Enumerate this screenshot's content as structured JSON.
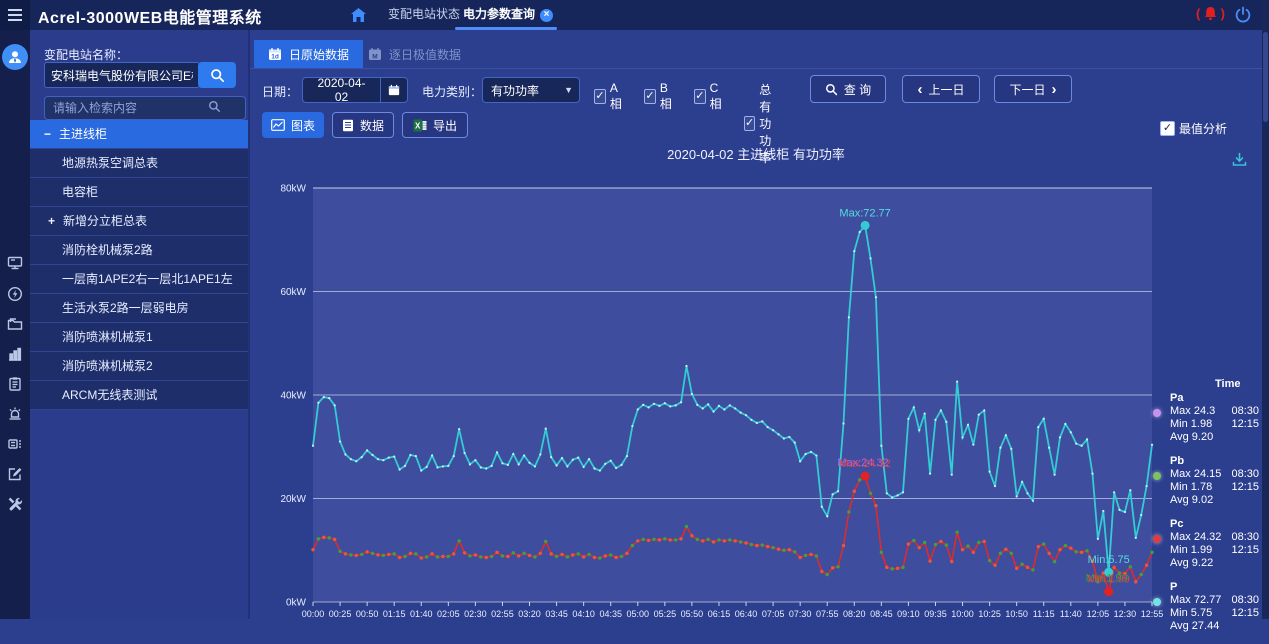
{
  "app": {
    "title": "Acrel-3000WEB电能管理系统"
  },
  "topbar": {
    "tabs": [
      {
        "label": "变配电站状态",
        "active": false
      },
      {
        "label": "电力参数查询",
        "active": true,
        "close": "×"
      }
    ]
  },
  "sidebar": {
    "station_label": "变配电站名称：",
    "station_value": "安科瑞电气股份有限公司E楼",
    "search_placeholder": "请输入检索内容",
    "tree": [
      {
        "label": "主进线柜",
        "expander": "−",
        "selected": true
      },
      {
        "label": "地源热泵空调总表"
      },
      {
        "label": "电容柜"
      },
      {
        "label": "新增分立柜总表",
        "expander": "+"
      },
      {
        "label": "消防栓机械泵2路"
      },
      {
        "label": "一层南1APE2右一层北1APE1左"
      },
      {
        "label": "生活水泵2路一层弱电房"
      },
      {
        "label": "消防喷淋机械泵1"
      },
      {
        "label": "消防喷淋机械泵2"
      },
      {
        "label": "ARCM无线表测试"
      }
    ]
  },
  "main": {
    "tabs": [
      {
        "label": "日原始数据",
        "active": true
      },
      {
        "label": "逐日极值数据",
        "active": false
      }
    ],
    "filters": {
      "date_label": "日期：",
      "date_value": "2020-04-02",
      "category_label": "电力类别：",
      "category_value": "有功功率",
      "checkboxes": [
        {
          "label": "A相",
          "checked": true
        },
        {
          "label": "B相",
          "checked": true
        },
        {
          "label": "C相",
          "checked": true
        },
        {
          "label": "总有功功率",
          "checked": true
        }
      ],
      "query_label": "查 询",
      "prev_label": "上一日",
      "next_label": "下一日"
    },
    "view_buttons": {
      "chart_label": "图表",
      "data_label": "数据",
      "export_label": "导出"
    },
    "extreme_checkbox": {
      "label": "最值分析",
      "checked": true
    }
  },
  "chart_data": {
    "type": "line",
    "title": "2020-04-02  主进线柜  有功功率",
    "ylim": [
      0,
      80
    ],
    "ytick_labels": [
      "0kW",
      "20kW",
      "40kW",
      "60kW",
      "80kW"
    ],
    "x_start": "00:00",
    "x_interval_minutes": 5,
    "x_tick_labels": [
      "00:00",
      "00:25",
      "00:50",
      "01:15",
      "01:40",
      "02:05",
      "02:30",
      "02:55",
      "03:20",
      "03:45",
      "04:10",
      "04:35",
      "05:00",
      "05:25",
      "05:50",
      "06:15",
      "06:40",
      "07:05",
      "07:30",
      "07:55",
      "08:20",
      "08:45",
      "09:10",
      "09:35",
      "10:00",
      "10:25",
      "10:50",
      "11:15",
      "11:40",
      "12:05",
      "12:30",
      "12:55"
    ],
    "series": [
      {
        "name": "Pa",
        "color": "#c98ff2",
        "values_ref": "phase"
      },
      {
        "name": "Pb",
        "color": "#7cc35a",
        "values_ref": "phase"
      },
      {
        "name": "Pc",
        "color": "#e23b3b",
        "values_ref": "phase"
      },
      {
        "name": "P",
        "color": "#33ccd4",
        "values_ref": "p"
      }
    ],
    "values": {
      "phase": [
        10.1,
        12.2,
        12.5,
        12.4,
        12.1,
        9.8,
        9.3,
        9.1,
        9.0,
        9.2,
        9.7,
        9.4,
        9.1,
        9.0,
        9.2,
        9.3,
        8.6,
        8.8,
        9.4,
        9.3,
        8.5,
        8.7,
        9.3,
        8.7,
        8.8,
        8.8,
        9.3,
        11.8,
        9.5,
        8.9,
        9.1,
        8.7,
        8.6,
        8.8,
        9.6,
        8.9,
        8.8,
        9.5,
        8.9,
        9.4,
        9.0,
        8.7,
        9.4,
        11.7,
        9.3,
        8.8,
        9.2,
        8.7,
        9.1,
        9.3,
        8.7,
        9.2,
        8.6,
        8.5,
        8.9,
        9.1,
        8.6,
        8.8,
        9.4,
        10.9,
        11.8,
        12.1,
        11.9,
        12.1,
        12.0,
        12.2,
        12.0,
        12.0,
        12.2,
        14.6,
        12.8,
        12.1,
        11.8,
        12.1,
        11.6,
        12.0,
        11.8,
        12.0,
        11.8,
        11.6,
        11.4,
        11.1,
        10.9,
        11.0,
        10.7,
        10.5,
        10.2,
        10.0,
        10.1,
        9.7,
        8.6,
        9.0,
        9.2,
        8.9,
        5.9,
        5.3,
        6.6,
        6.8,
        10.9,
        17.4,
        21.4,
        23.6,
        24.32,
        21.0,
        18.6,
        9.6,
        6.7,
        6.4,
        6.5,
        6.7,
        11.2,
        11.9,
        10.5,
        11.5,
        7.9,
        11.1,
        11.7,
        11.0,
        7.8,
        13.5,
        10.1,
        10.8,
        9.6,
        11.5,
        11.7,
        8.0,
        7.1,
        9.4,
        10.2,
        9.4,
        6.5,
        7.3,
        6.7,
        6.2,
        10.7,
        11.2,
        9.4,
        7.8,
        10.1,
        10.9,
        10.4,
        9.7,
        9.6,
        9.9,
        7.9,
        3.9,
        5.6,
        1.99,
        6.7,
        5.6,
        5.5,
        6.8,
        3.9,
        5.3,
        7.1,
        9.6
      ],
      "p": [
        30.2,
        38.5,
        39.6,
        39.4,
        38.0,
        31.0,
        28.5,
        27.6,
        27.2,
        28.0,
        29.3,
        28.4,
        27.6,
        27.4,
        27.9,
        28.1,
        25.6,
        26.3,
        28.4,
        28.2,
        25.4,
        26.1,
        28.3,
        26.0,
        26.2,
        26.3,
        28.2,
        33.4,
        28.8,
        26.6,
        27.4,
        26.0,
        25.8,
        26.3,
        28.9,
        26.8,
        26.5,
        28.6,
        26.6,
        28.3,
        26.9,
        26.2,
        28.5,
        33.5,
        28.0,
        26.4,
        27.8,
        26.2,
        27.5,
        27.9,
        26.1,
        27.6,
        25.8,
        25.4,
        26.7,
        27.3,
        25.9,
        26.5,
        28.2,
        34.0,
        37.2,
        38.1,
        37.6,
        38.3,
        37.9,
        38.4,
        37.8,
        38.0,
        38.6,
        45.6,
        40.2,
        38.1,
        37.4,
        38.2,
        36.8,
        37.9,
        37.2,
        38.0,
        37.4,
        36.6,
        36.1,
        35.2,
        34.6,
        34.9,
        33.8,
        33.2,
        32.4,
        31.6,
        31.9,
        30.8,
        27.2,
        28.6,
        29.0,
        28.3,
        18.4,
        16.6,
        20.8,
        21.4,
        34.5,
        55.0,
        67.8,
        71.5,
        72.77,
        66.4,
        58.9,
        30.2,
        21.0,
        20.2,
        20.6,
        21.2,
        35.4,
        37.6,
        33.2,
        36.4,
        24.8,
        35.2,
        37.0,
        34.8,
        24.6,
        42.6,
        31.8,
        34.2,
        30.4,
        36.2,
        37.0,
        25.2,
        22.4,
        29.8,
        32.2,
        29.6,
        20.4,
        23.2,
        21.0,
        19.6,
        33.8,
        35.4,
        29.8,
        24.6,
        31.8,
        34.4,
        32.8,
        30.6,
        30.2,
        31.4,
        24.8,
        12.2,
        17.6,
        5.75,
        21.2,
        17.8,
        17.4,
        21.6,
        12.4,
        16.8,
        22.4,
        30.4
      ]
    },
    "annotations": [
      {
        "series": "P",
        "type": "max",
        "label": "Max:72.77",
        "index": 102,
        "value": 72.77,
        "dot": "#33ccd4",
        "color": "#55dde2"
      },
      {
        "series": "Pc",
        "type": "max",
        "label": "Max:24.32",
        "index": 102,
        "value": 24.32,
        "dot": "#e52222",
        "color": "#e04444",
        "echo": "#a868e8"
      },
      {
        "series": "P",
        "type": "min",
        "label": "Min:5.75",
        "index": 147,
        "value": 5.75,
        "dot": "#33ccd4",
        "color": "#55dde2"
      },
      {
        "series": "Pc",
        "type": "min",
        "label": "Min:1.99",
        "index": 147,
        "value": 1.99,
        "dot": "#e52222",
        "color": "#e04444",
        "echo": "#3da23a"
      }
    ]
  },
  "legend": {
    "time_header": "Time",
    "entries": [
      {
        "name": "Pa",
        "color": "#c98ff2",
        "max": "24.3",
        "max_time": "08:30",
        "min": "1.98",
        "min_time": "12:15",
        "avg": "9.20"
      },
      {
        "name": "Pb",
        "color": "#7cc35a",
        "max": "24.15",
        "max_time": "08:30",
        "min": "1.78",
        "min_time": "12:15",
        "avg": "9.02"
      },
      {
        "name": "Pc",
        "color": "#e23b3b",
        "max": "24.32",
        "max_time": "08:30",
        "min": "1.99",
        "min_time": "12:15",
        "avg": "9.22"
      },
      {
        "name": "P",
        "color": "#6fe3e8",
        "max": "72.77",
        "max_time": "08:30",
        "min": "5.75",
        "min_time": "12:15",
        "avg": "27.44"
      }
    ]
  }
}
